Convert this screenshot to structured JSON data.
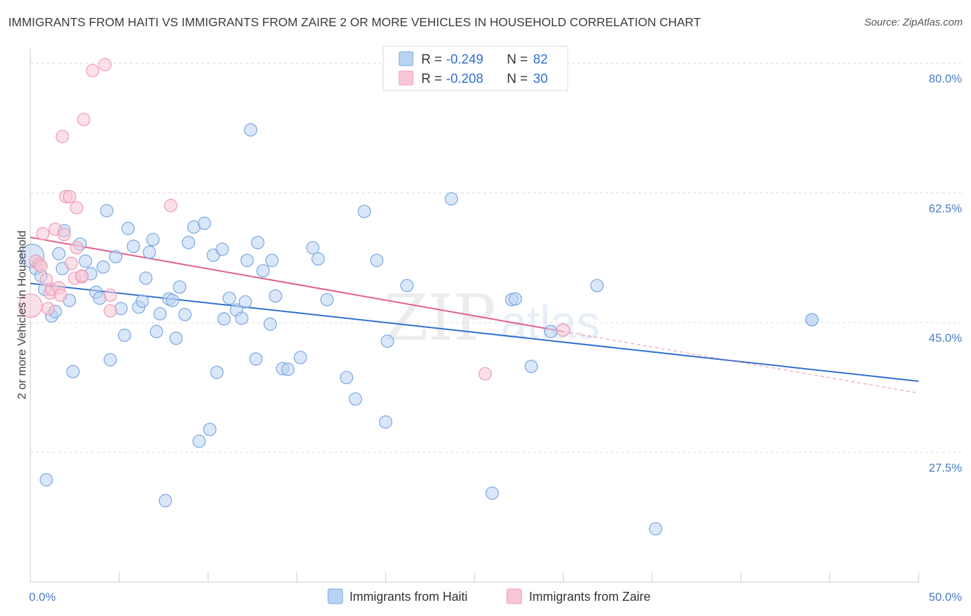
{
  "title": "IMMIGRANTS FROM HAITI VS IMMIGRANTS FROM ZAIRE 2 OR MORE VEHICLES IN HOUSEHOLD CORRELATION CHART",
  "source": "Source: ZipAtlas.com",
  "watermark": {
    "zip": "ZIP",
    "atlas": "atlas"
  },
  "colors": {
    "haiti_fill": "#b9d3f3",
    "haiti_stroke": "#7aa6e0",
    "haiti_line": "#2f6fd0",
    "zaire_fill": "#f8c6d6",
    "zaire_stroke": "#ee9ab6",
    "zaire_line": "#e0608c",
    "grid": "#dcdcdc",
    "tick_text": "#4a7cc6"
  },
  "legend": {
    "rows": [
      {
        "r_label": "R = ",
        "r_value": "-0.249",
        "n_label": "N = ",
        "n_value": "82"
      },
      {
        "r_label": "R = ",
        "r_value": "-0.208",
        "n_label": "N = ",
        "n_value": "30"
      }
    ]
  },
  "chart_data": {
    "type": "scatter",
    "title": "IMMIGRANTS FROM HAITI VS IMMIGRANTS FROM ZAIRE 2 OR MORE VEHICLES IN HOUSEHOLD CORRELATION CHART",
    "xlabel": "",
    "ylabel": "2 or more Vehicles in Household",
    "xlim": [
      0,
      50
    ],
    "ylim": [
      10,
      82
    ],
    "x_tick_labels": [
      "0.0%",
      "50.0%"
    ],
    "y_ticks": [
      27.5,
      45.0,
      62.5,
      80.0
    ],
    "y_tick_labels": [
      "27.5%",
      "45.0%",
      "62.5%",
      "80.0%"
    ],
    "grid": true,
    "legend_position": "top-center",
    "series": [
      {
        "name": "Immigrants from Haiti",
        "points": [
          [
            0.1,
            54.0
          ],
          [
            0.3,
            52.3
          ],
          [
            0.6,
            51.3
          ],
          [
            0.8,
            49.5
          ],
          [
            0.9,
            23.8
          ],
          [
            1.2,
            45.9
          ],
          [
            1.4,
            46.5
          ],
          [
            1.6,
            54.3
          ],
          [
            1.8,
            52.3
          ],
          [
            1.9,
            57.4
          ],
          [
            2.2,
            48.0
          ],
          [
            2.4,
            38.4
          ],
          [
            2.8,
            55.6
          ],
          [
            3.1,
            53.3
          ],
          [
            3.4,
            51.6
          ],
          [
            3.7,
            49.1
          ],
          [
            3.9,
            48.3
          ],
          [
            4.1,
            52.5
          ],
          [
            4.3,
            60.1
          ],
          [
            4.5,
            40.0
          ],
          [
            4.8,
            53.9
          ],
          [
            5.1,
            46.9
          ],
          [
            5.3,
            43.3
          ],
          [
            5.5,
            57.7
          ],
          [
            5.8,
            55.3
          ],
          [
            6.1,
            47.1
          ],
          [
            6.3,
            47.9
          ],
          [
            6.5,
            51.0
          ],
          [
            6.7,
            54.5
          ],
          [
            6.9,
            56.2
          ],
          [
            7.1,
            43.8
          ],
          [
            7.3,
            46.2
          ],
          [
            7.6,
            21.0
          ],
          [
            7.8,
            48.2
          ],
          [
            8.0,
            48.0
          ],
          [
            8.2,
            42.9
          ],
          [
            8.4,
            49.8
          ],
          [
            8.7,
            46.1
          ],
          [
            8.9,
            55.8
          ],
          [
            9.2,
            57.9
          ],
          [
            9.5,
            29.0
          ],
          [
            9.8,
            58.4
          ],
          [
            10.1,
            30.6
          ],
          [
            10.3,
            54.1
          ],
          [
            10.5,
            38.3
          ],
          [
            10.8,
            54.9
          ],
          [
            10.9,
            45.5
          ],
          [
            11.2,
            48.3
          ],
          [
            11.6,
            46.7
          ],
          [
            11.9,
            45.6
          ],
          [
            12.1,
            47.8
          ],
          [
            12.2,
            53.4
          ],
          [
            12.4,
            71.0
          ],
          [
            12.7,
            40.1
          ],
          [
            12.8,
            55.8
          ],
          [
            13.1,
            52.0
          ],
          [
            13.5,
            44.8
          ],
          [
            13.6,
            53.4
          ],
          [
            13.8,
            48.6
          ],
          [
            14.2,
            38.8
          ],
          [
            14.5,
            38.7
          ],
          [
            15.2,
            40.3
          ],
          [
            15.9,
            55.1
          ],
          [
            16.2,
            53.6
          ],
          [
            16.7,
            48.1
          ],
          [
            17.8,
            37.6
          ],
          [
            18.3,
            34.7
          ],
          [
            18.8,
            60.0
          ],
          [
            19.5,
            53.4
          ],
          [
            20.0,
            31.6
          ],
          [
            20.1,
            42.5
          ],
          [
            21.2,
            50.0
          ],
          [
            23.7,
            61.7
          ],
          [
            26.0,
            22.0
          ],
          [
            27.1,
            48.1
          ],
          [
            27.3,
            48.2
          ],
          [
            28.2,
            39.1
          ],
          [
            29.3,
            43.8
          ],
          [
            31.9,
            50.0
          ],
          [
            35.2,
            17.2
          ],
          [
            44.0,
            45.4
          ],
          [
            44.0,
            45.4
          ]
        ]
      },
      {
        "name": "Immigrants from Zaire",
        "points": [
          [
            0.0,
            47.3
          ],
          [
            0.3,
            53.3
          ],
          [
            0.5,
            52.9
          ],
          [
            0.6,
            52.6
          ],
          [
            0.7,
            57.0
          ],
          [
            0.9,
            50.8
          ],
          [
            1.0,
            46.9
          ],
          [
            1.1,
            49.0
          ],
          [
            1.2,
            49.5
          ],
          [
            1.4,
            57.6
          ],
          [
            1.6,
            49.7
          ],
          [
            1.7,
            48.7
          ],
          [
            1.8,
            70.1
          ],
          [
            1.9,
            56.9
          ],
          [
            2.0,
            62.0
          ],
          [
            2.2,
            62.0
          ],
          [
            2.3,
            53.0
          ],
          [
            2.5,
            51.0
          ],
          [
            2.6,
            60.5
          ],
          [
            2.6,
            55.1
          ],
          [
            2.9,
            51.2
          ],
          [
            2.9,
            51.3
          ],
          [
            3.0,
            72.4
          ],
          [
            3.5,
            79.0
          ],
          [
            4.2,
            79.8
          ],
          [
            4.5,
            48.7
          ],
          [
            4.5,
            46.6
          ],
          [
            7.9,
            60.8
          ],
          [
            25.6,
            38.1
          ],
          [
            30.0,
            44.0
          ]
        ]
      }
    ],
    "trend_lines": [
      {
        "series": "Immigrants from Haiti",
        "x": [
          0.0,
          50.0
        ],
        "y": [
          50.3,
          37.1
        ]
      },
      {
        "series": "Immigrants from Zaire",
        "x": [
          0.0,
          30.0
        ],
        "y": [
          56.5,
          43.8
        ],
        "dashed_extension_to": [
          50.0,
          35.5
        ]
      }
    ]
  }
}
